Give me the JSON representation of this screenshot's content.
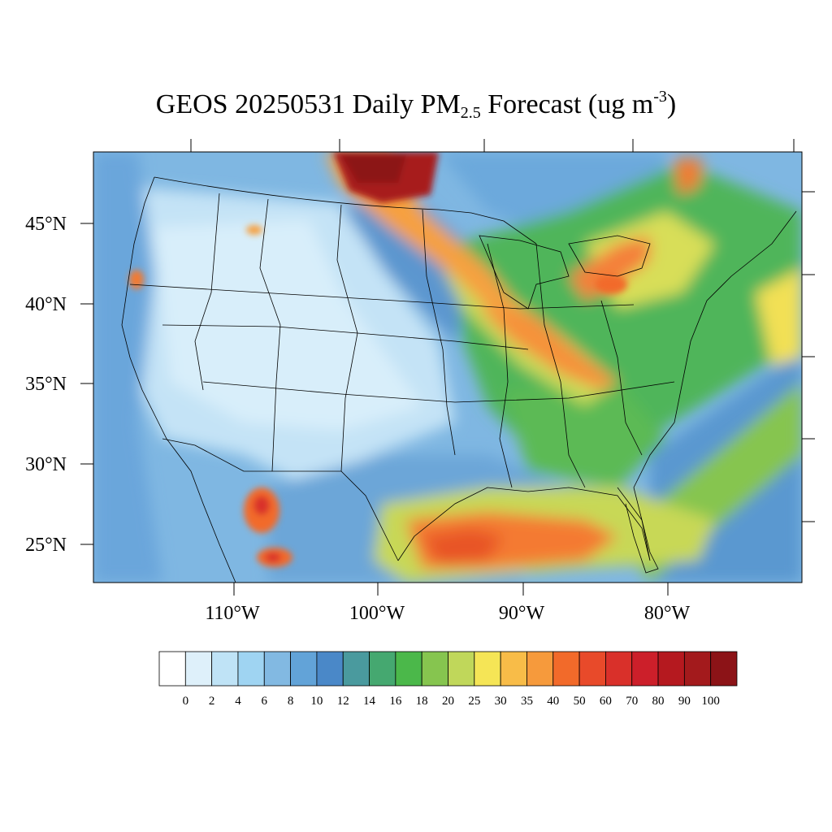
{
  "title": {
    "prefix": "GEOS 20250531 Daily PM",
    "subscript": "2.5",
    "middle": " Forecast (ug m",
    "superscript": "-3",
    "suffix": ")"
  },
  "map": {
    "region": "Contiguous United States",
    "lat_labels": [
      "45°N",
      "40°N",
      "35°N",
      "30°N",
      "25°N"
    ],
    "lon_labels": [
      "110°W",
      "100°W",
      "90°W",
      "80°W"
    ],
    "background_color": "#7fb7e2"
  },
  "colorbar": {
    "labels": [
      "0",
      "2",
      "4",
      "6",
      "8",
      "10",
      "12",
      "14",
      "16",
      "18",
      "20",
      "25",
      "30",
      "35",
      "40",
      "50",
      "60",
      "70",
      "80",
      "90",
      "100"
    ],
    "colors": [
      "#ffffff",
      "#def0fa",
      "#bfe3f6",
      "#9fd4f2",
      "#82b9e2",
      "#62a3d8",
      "#4a88c8",
      "#4a9a9e",
      "#45a870",
      "#4bb84a",
      "#86c54f",
      "#c0d75a",
      "#f5e556",
      "#f8bc48",
      "#f69a3c",
      "#f26a2a",
      "#e84a2a",
      "#d9302a",
      "#cc1f2a",
      "#b5191f",
      "#a31a1c",
      "#8c1317"
    ]
  }
}
